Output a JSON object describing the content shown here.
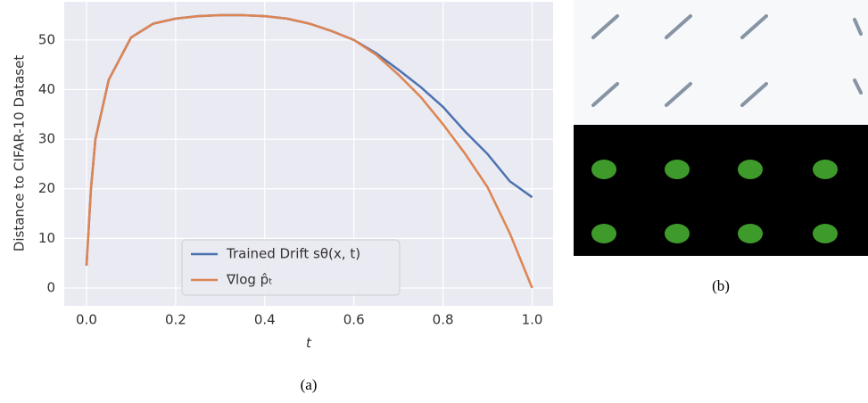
{
  "chart_data": {
    "type": "line",
    "x": [
      0,
      0.01,
      0.02,
      0.05,
      0.1,
      0.15,
      0.2,
      0.25,
      0.3,
      0.35,
      0.4,
      0.45,
      0.5,
      0.55,
      0.6,
      0.65,
      0.7,
      0.75,
      0.8,
      0.85,
      0.9,
      0.95,
      1.0
    ],
    "series": [
      {
        "name": "Trained Drift sθ(x, t)",
        "color": "#4c72b0",
        "values": [
          4.5,
          20,
          30,
          42,
          50.5,
          53.3,
          54.3,
          54.8,
          55,
          55,
          54.8,
          54.3,
          53.3,
          51.8,
          50,
          47.3,
          44,
          40.5,
          36.5,
          31.5,
          27,
          21.5,
          18.3
        ]
      },
      {
        "name": "∇log p̂ₜ",
        "color": "#dd8452",
        "values": [
          4.5,
          20,
          30,
          42,
          50.5,
          53.3,
          54.3,
          54.8,
          55,
          55,
          54.8,
          54.3,
          53.3,
          51.8,
          50,
          47,
          43,
          38.5,
          33,
          27,
          20.3,
          11,
          0
        ]
      }
    ],
    "xlabel": "t",
    "ylabel": "Distance to CIFAR-10 Dataset",
    "xlim": [
      -0.05,
      1.047
    ],
    "ylim": [
      -3.6,
      57.7
    ],
    "xticks": [
      {
        "value": 0,
        "label": "0.0"
      },
      0.2,
      0.4,
      0.6,
      0.8,
      {
        "value": 1,
        "label": "1.0"
      }
    ],
    "yticks": [
      0,
      10,
      20,
      30,
      40,
      50
    ],
    "grid": true,
    "legend": "lower center",
    "caption_a": "(a)",
    "caption_b": "(b)"
  }
}
